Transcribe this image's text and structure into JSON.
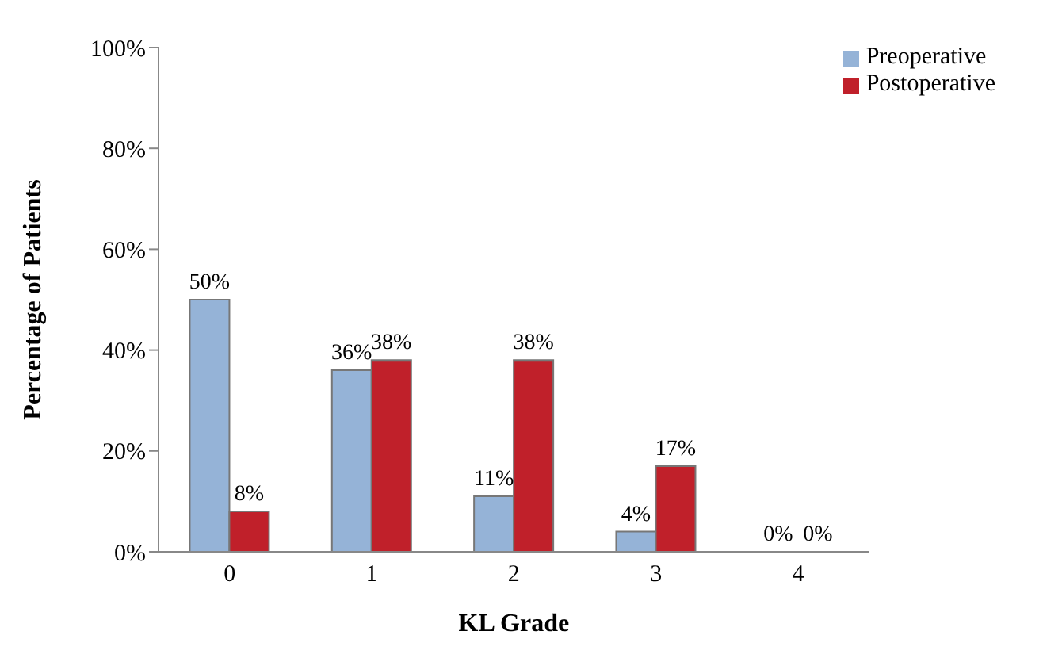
{
  "chart_data": {
    "type": "bar",
    "xlabel": "KL Grade",
    "ylabel": "Percentage of Patients",
    "categories": [
      "0",
      "1",
      "2",
      "3",
      "4"
    ],
    "series": [
      {
        "name": "Preoperative",
        "color": "#95b3d7",
        "values": [
          50,
          36,
          11,
          4,
          0
        ],
        "value_labels": [
          "50%",
          "36%",
          "11%",
          "4%",
          "0%"
        ]
      },
      {
        "name": "Postoperative",
        "color": "#c0202a",
        "values": [
          8,
          38,
          38,
          17,
          0
        ],
        "value_labels": [
          "8%",
          "38%",
          "38%",
          "17%",
          "0%"
        ]
      }
    ],
    "ylim": [
      0,
      100
    ],
    "yticks": [
      {
        "value": 0,
        "label": "0%"
      },
      {
        "value": 20,
        "label": "20%"
      },
      {
        "value": 40,
        "label": "40%"
      },
      {
        "value": 60,
        "label": "60%"
      },
      {
        "value": 80,
        "label": "80%"
      },
      {
        "value": 100,
        "label": "100%"
      }
    ],
    "grid": false,
    "legend": "top right"
  }
}
